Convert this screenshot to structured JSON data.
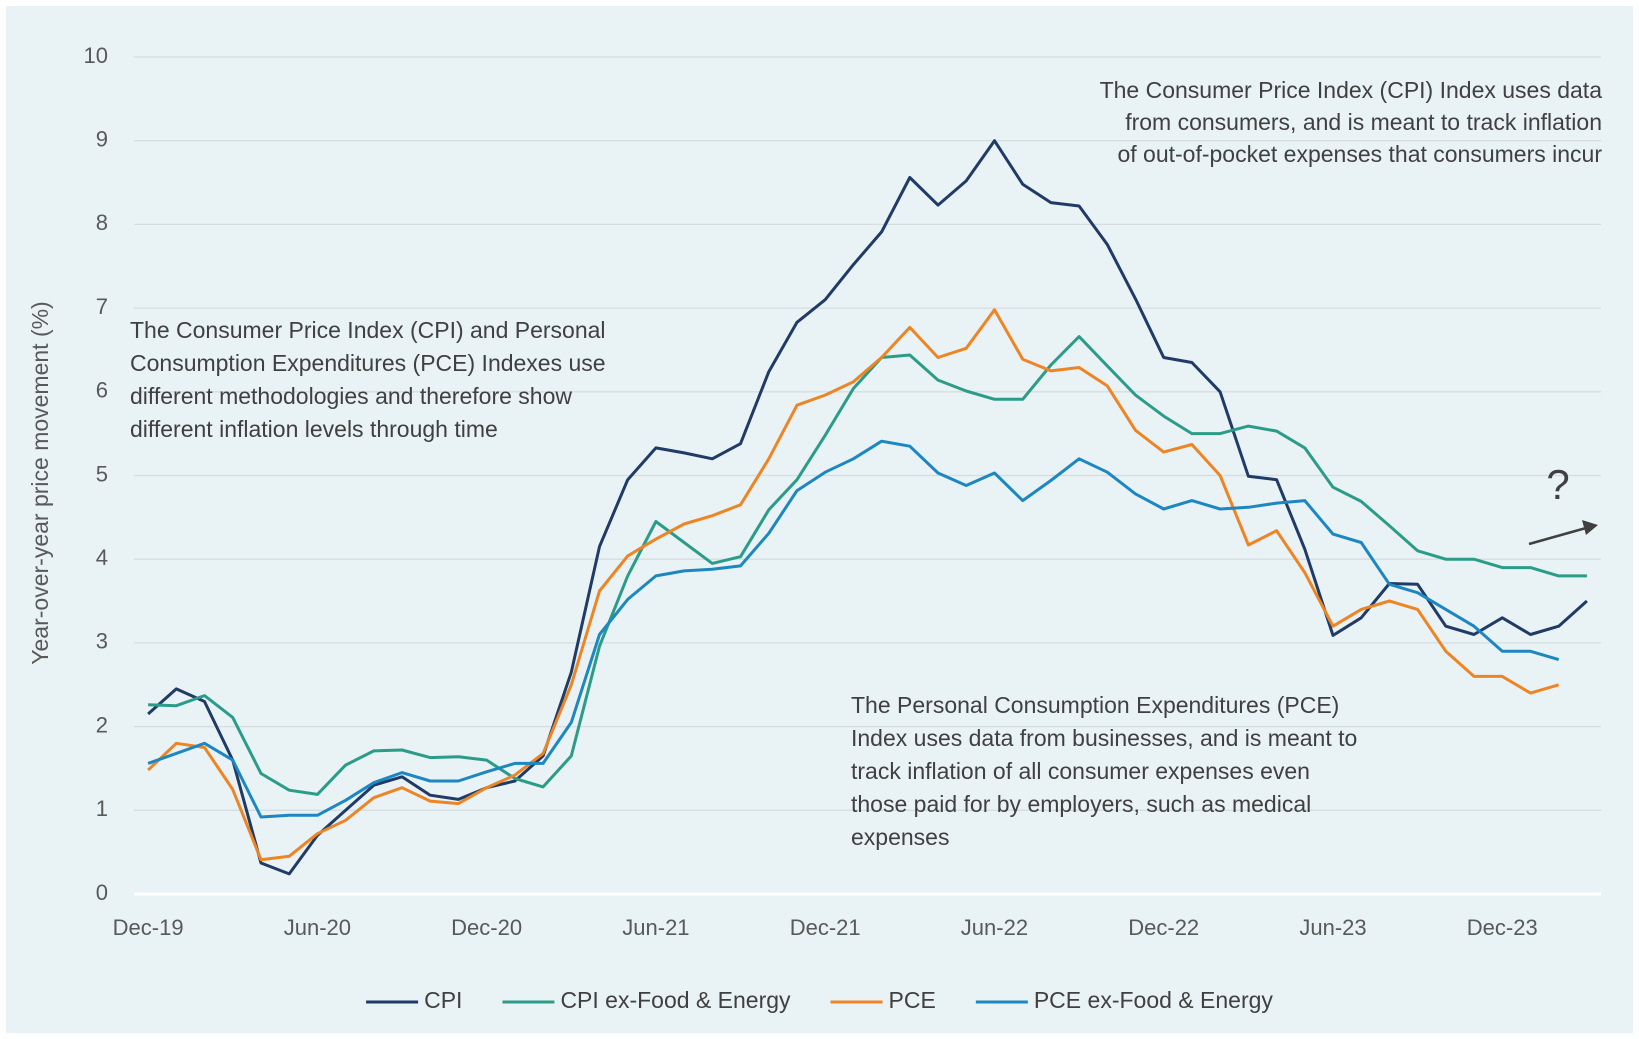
{
  "chart_data": {
    "type": "line",
    "y_label": "Year-over-year price movement (%)",
    "categories": [
      "Dec-19",
      null,
      null,
      null,
      null,
      null,
      "Jun-20",
      null,
      null,
      null,
      null,
      null,
      "Dec-20",
      null,
      null,
      null,
      null,
      null,
      "Jun-21",
      null,
      null,
      null,
      null,
      null,
      "Dec-21",
      null,
      null,
      null,
      null,
      null,
      "Jun-22",
      null,
      null,
      null,
      null,
      null,
      "Dec-22",
      null,
      null,
      null,
      null,
      null,
      "Jun-23",
      null,
      null,
      null,
      null,
      null,
      "Dec-23",
      null,
      null,
      null
    ],
    "series": [
      {
        "name": "CPI",
        "color": "#1f3b66",
        "values": [
          2.15,
          2.45,
          2.3,
          1.6,
          0.37,
          0.24,
          0.7,
          1.0,
          1.3,
          1.4,
          1.18,
          1.13,
          1.27,
          1.35,
          1.65,
          2.65,
          4.15,
          4.95,
          5.33,
          5.27,
          5.2,
          5.38,
          6.24,
          6.83,
          7.1,
          7.52,
          7.91,
          8.56,
          8.23,
          8.52,
          9.0,
          8.48,
          8.26,
          8.22,
          7.76,
          7.11,
          6.41,
          6.35,
          6.0,
          4.99,
          4.95,
          4.12,
          3.09,
          3.3,
          3.71,
          3.7,
          3.2,
          3.1,
          3.3,
          3.1,
          3.2,
          3.5
        ]
      },
      {
        "name": "CPI ex-Food & Energy",
        "color": "#2b9c88",
        "values": [
          2.26,
          2.25,
          2.37,
          2.11,
          1.44,
          1.24,
          1.19,
          1.54,
          1.71,
          1.72,
          1.63,
          1.64,
          1.6,
          1.38,
          1.28,
          1.65,
          2.96,
          3.8,
          4.45,
          4.2,
          3.95,
          4.03,
          4.59,
          4.95,
          5.48,
          6.04,
          6.41,
          6.44,
          6.14,
          6.01,
          5.91,
          5.91,
          6.32,
          6.66,
          6.31,
          5.96,
          5.71,
          5.5,
          5.5,
          5.59,
          5.53,
          5.33,
          4.86,
          4.69,
          4.4,
          4.1,
          4.0,
          4.0,
          3.9,
          3.9,
          3.8,
          3.8
        ]
      },
      {
        "name": "PCE",
        "color": "#ee8524",
        "values": [
          1.48,
          1.8,
          1.75,
          1.25,
          0.41,
          0.45,
          0.72,
          0.88,
          1.15,
          1.27,
          1.11,
          1.08,
          1.27,
          1.42,
          1.68,
          2.5,
          3.62,
          4.04,
          4.24,
          4.42,
          4.52,
          4.65,
          5.2,
          5.84,
          5.96,
          6.12,
          6.41,
          6.77,
          6.41,
          6.52,
          6.98,
          6.39,
          6.25,
          6.29,
          6.07,
          5.54,
          5.28,
          5.37,
          5.0,
          4.17,
          4.34,
          3.84,
          3.2,
          3.4,
          3.5,
          3.4,
          2.9,
          2.6,
          2.6,
          2.4,
          2.5,
          null
        ]
      },
      {
        "name": "PCE ex-Food & Energy",
        "color": "#1c87c0",
        "values": [
          1.56,
          1.68,
          1.8,
          1.6,
          0.92,
          0.94,
          0.94,
          1.12,
          1.33,
          1.45,
          1.35,
          1.35,
          1.46,
          1.56,
          1.56,
          2.05,
          3.1,
          3.52,
          3.8,
          3.86,
          3.88,
          3.92,
          4.31,
          4.82,
          5.04,
          5.2,
          5.41,
          5.35,
          5.03,
          4.88,
          5.03,
          4.7,
          4.94,
          5.2,
          5.04,
          4.78,
          4.6,
          4.7,
          4.6,
          4.62,
          4.67,
          4.7,
          4.3,
          4.2,
          3.7,
          3.6,
          3.4,
          3.2,
          2.9,
          2.9,
          2.8,
          null
        ]
      }
    ],
    "ylim": [
      0,
      10
    ],
    "yticks": [
      0,
      1,
      2,
      3,
      4,
      5,
      6,
      7,
      8,
      9,
      10
    ],
    "grid": true,
    "legend": "bottom",
    "annotations": [
      {
        "lines": [
          "The Consumer Price Index (CPI) Index uses data",
          "from consumers, and is meant to track inflation",
          "of out-of-pocket expenses that consumers incur"
        ]
      },
      {
        "lines": [
          "The Consumer Price Index (CPI) and Personal",
          "Consumption Expenditures (PCE) Indexes use",
          "different methodologies and therefore show",
          "different inflation levels through time"
        ]
      },
      {
        "lines": [
          "The Personal Consumption Expenditures (PCE)",
          "Index uses data from businesses, and is meant to",
          "track inflation of all consumer expenses even",
          "those paid for by employers, such as medical",
          "expenses"
        ]
      },
      {
        "lines": [
          "?"
        ]
      }
    ]
  }
}
